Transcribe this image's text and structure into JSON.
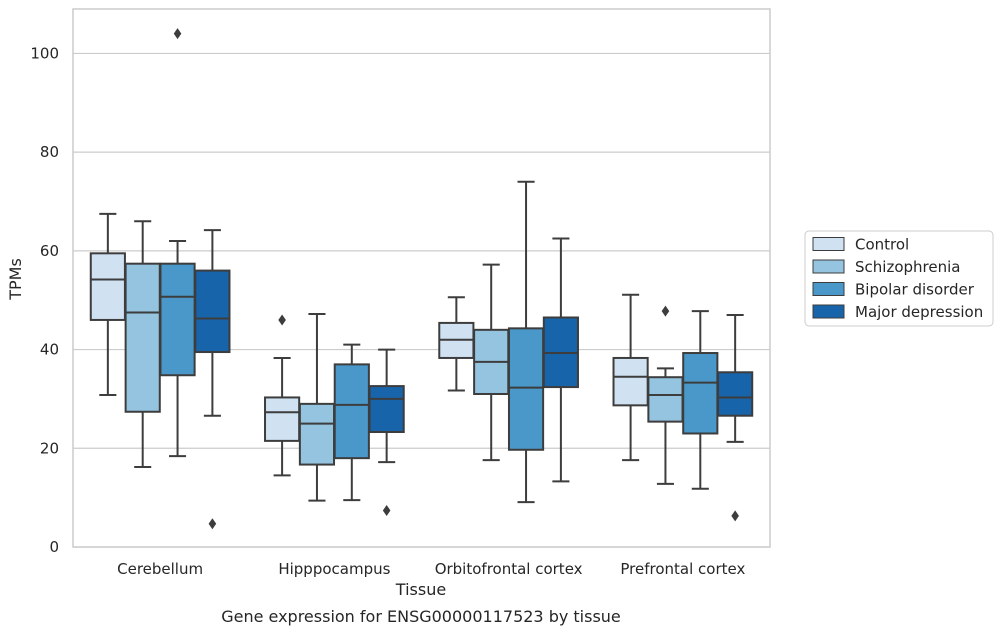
{
  "chart_data": {
    "type": "box",
    "title": "",
    "caption": "Gene expression for ENSG00000117523 by tissue",
    "xlabel": "Tissue",
    "ylabel": "TPMs",
    "ylim": [
      0,
      109
    ],
    "yticks": [
      0,
      20,
      40,
      60,
      80,
      100
    ],
    "grid": "horizontal",
    "legend_position": "right",
    "categories": [
      "Cerebellum",
      "Hipppocampus",
      "Orbitofrontal cortex",
      "Prefrontal cortex"
    ],
    "series": [
      {
        "name": "Control",
        "color": "#d0e1f2",
        "boxes": [
          {
            "whisker_low": 30.8,
            "q1": 46.0,
            "median": 54.2,
            "q3": 59.5,
            "whisker_high": 67.5,
            "outliers": []
          },
          {
            "whisker_low": 14.5,
            "q1": 21.5,
            "median": 27.3,
            "q3": 30.3,
            "whisker_high": 38.3,
            "outliers": [
              46.0
            ]
          },
          {
            "whisker_low": 31.7,
            "q1": 38.3,
            "median": 42.0,
            "q3": 45.4,
            "whisker_high": 50.6,
            "outliers": []
          },
          {
            "whisker_low": 17.6,
            "q1": 28.7,
            "median": 34.5,
            "q3": 38.3,
            "whisker_high": 51.1,
            "outliers": []
          }
        ]
      },
      {
        "name": "Schizophrenia",
        "color": "#94c4df",
        "boxes": [
          {
            "whisker_low": 16.2,
            "q1": 27.4,
            "median": 47.5,
            "q3": 57.4,
            "whisker_high": 66.0,
            "outliers": []
          },
          {
            "whisker_low": 9.4,
            "q1": 16.7,
            "median": 25.0,
            "q3": 29.0,
            "whisker_high": 47.2,
            "outliers": []
          },
          {
            "whisker_low": 17.6,
            "q1": 31.0,
            "median": 37.5,
            "q3": 44.0,
            "whisker_high": 57.2,
            "outliers": []
          },
          {
            "whisker_low": 12.8,
            "q1": 25.4,
            "median": 30.8,
            "q3": 34.4,
            "whisker_high": 36.2,
            "outliers": [
              47.8
            ]
          }
        ]
      },
      {
        "name": "Bipolar disorder",
        "color": "#4a98c9",
        "boxes": [
          {
            "whisker_low": 18.4,
            "q1": 34.8,
            "median": 50.7,
            "q3": 57.4,
            "whisker_high": 62.0,
            "outliers": [
              104.0
            ]
          },
          {
            "whisker_low": 9.5,
            "q1": 18.0,
            "median": 28.8,
            "q3": 37.0,
            "whisker_high": 41.0,
            "outliers": []
          },
          {
            "whisker_low": 9.1,
            "q1": 19.7,
            "median": 32.3,
            "q3": 44.3,
            "whisker_high": 74.0,
            "outliers": []
          },
          {
            "whisker_low": 11.8,
            "q1": 23.0,
            "median": 33.3,
            "q3": 39.3,
            "whisker_high": 47.8,
            "outliers": []
          }
        ]
      },
      {
        "name": "Major depression",
        "color": "#1764ab",
        "boxes": [
          {
            "whisker_low": 26.6,
            "q1": 39.5,
            "median": 46.3,
            "q3": 56.0,
            "whisker_high": 64.2,
            "outliers": [
              4.7
            ]
          },
          {
            "whisker_low": 17.2,
            "q1": 23.3,
            "median": 30.0,
            "q3": 32.6,
            "whisker_high": 40.0,
            "outliers": [
              7.4
            ]
          },
          {
            "whisker_low": 13.3,
            "q1": 32.4,
            "median": 39.3,
            "q3": 46.5,
            "whisker_high": 62.5,
            "outliers": []
          },
          {
            "whisker_low": 21.3,
            "q1": 26.6,
            "median": 30.3,
            "q3": 35.4,
            "whisker_high": 47.0,
            "outliers": [
              6.3
            ]
          }
        ]
      }
    ]
  }
}
